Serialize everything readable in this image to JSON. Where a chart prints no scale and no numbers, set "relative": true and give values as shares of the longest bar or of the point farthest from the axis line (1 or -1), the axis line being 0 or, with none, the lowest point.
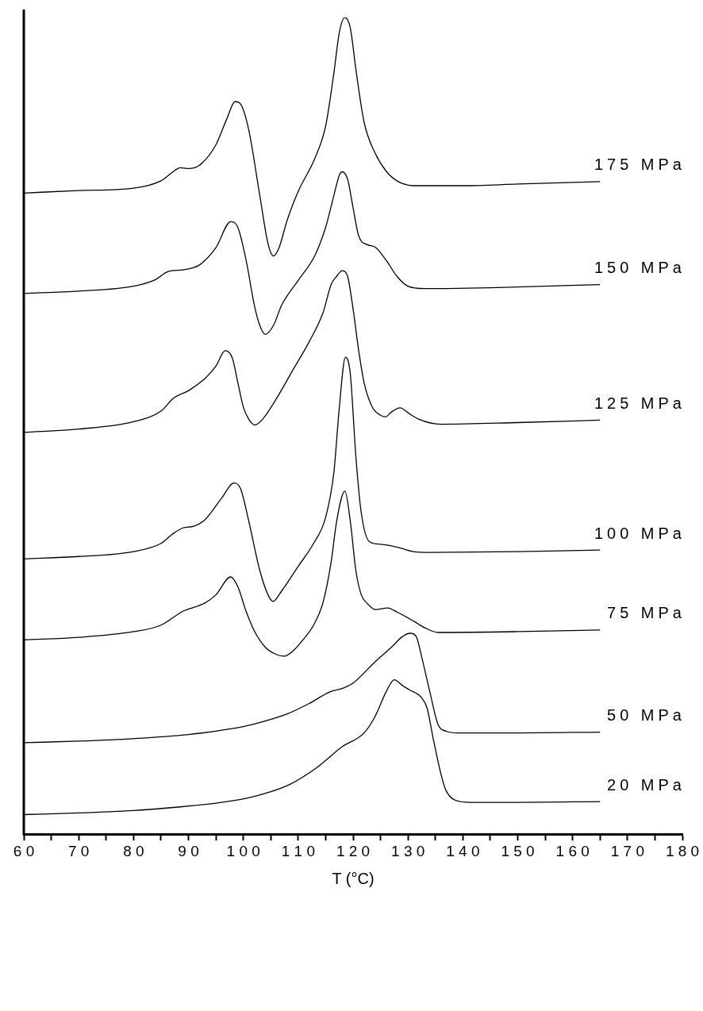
{
  "chart_data": {
    "type": "line",
    "relative": true,
    "xlabel": "T (°C)",
    "xlim": [
      60,
      180
    ],
    "xticks": [
      60,
      {
        "value": 65,
        "label": null
      },
      70,
      {
        "value": 75,
        "label": null
      },
      80,
      {
        "value": 85,
        "label": null
      },
      90,
      {
        "value": 95,
        "label": null
      },
      100,
      {
        "value": 105,
        "label": null
      },
      110,
      {
        "value": 115,
        "label": null
      },
      120,
      {
        "value": 125,
        "label": null
      },
      130,
      {
        "value": 135,
        "label": null
      },
      140,
      {
        "value": 145,
        "label": null
      },
      150,
      {
        "value": 155,
        "label": null
      },
      160,
      {
        "value": 165,
        "label": null
      },
      170,
      {
        "value": 175,
        "label": null
      },
      180
    ],
    "series": [
      {
        "name": "175 MPa",
        "color": "#000000",
        "x": [
          60,
          70,
          80,
          85,
          87,
          88.5,
          90,
          92,
          95,
          97,
          98.5,
          99.5,
          101,
          103,
          104.5,
          105.5,
          106.5,
          108,
          110,
          113,
          115,
          116.5,
          117.5,
          118.5,
          119.5,
          120.5,
          122,
          124,
          126,
          128,
          131,
          140,
          150,
          165
        ],
        "values": [
          0.785,
          0.788,
          0.791,
          0.8,
          0.81,
          0.816,
          0.815,
          0.819,
          0.844,
          0.876,
          0.897,
          0.894,
          0.862,
          0.782,
          0.723,
          0.708,
          0.718,
          0.752,
          0.787,
          0.827,
          0.867,
          0.932,
          0.982,
          1.0,
          0.987,
          0.937,
          0.872,
          0.834,
          0.812,
          0.8,
          0.794,
          0.794,
          0.796,
          0.799
        ]
      },
      {
        "name": "150 MPa",
        "color": "#000000",
        "x": [
          60,
          70,
          80,
          84,
          86.3,
          89,
          92,
          95,
          97.7,
          99,
          100.5,
          102,
          103,
          104,
          105.5,
          107,
          110,
          113,
          115,
          116.5,
          117.5,
          118,
          119,
          120,
          121,
          122.5,
          124,
          126,
          128,
          130,
          133,
          150,
          165
        ],
        "values": [
          0.662,
          0.665,
          0.671,
          0.679,
          0.689,
          0.691,
          0.697,
          0.718,
          0.75,
          0.743,
          0.703,
          0.648,
          0.623,
          0.612,
          0.623,
          0.648,
          0.678,
          0.708,
          0.743,
          0.782,
          0.807,
          0.811,
          0.802,
          0.767,
          0.733,
          0.722,
          0.719,
          0.703,
          0.683,
          0.671,
          0.668,
          0.67,
          0.673
        ]
      },
      {
        "name": "125 MPa",
        "color": "#000000",
        "x": [
          60,
          70,
          80,
          85,
          87.3,
          90,
          93,
          95,
          96.7,
          98,
          99,
          100,
          101,
          102.1,
          103.5,
          106,
          109,
          112,
          114.5,
          116,
          117,
          118,
          119,
          120,
          121,
          122,
          123.5,
          125,
          125.9,
          127,
          128.6,
          130,
          132,
          136,
          150,
          165
        ],
        "values": [
          0.492,
          0.496,
          0.505,
          0.518,
          0.534,
          0.543,
          0.558,
          0.573,
          0.592,
          0.583,
          0.553,
          0.523,
          0.508,
          0.501,
          0.508,
          0.533,
          0.568,
          0.603,
          0.638,
          0.673,
          0.683,
          0.69,
          0.683,
          0.643,
          0.593,
          0.553,
          0.523,
          0.513,
          0.511,
          0.517,
          0.522,
          0.516,
          0.508,
          0.502,
          0.504,
          0.507
        ]
      },
      {
        "name": "100 MPa",
        "color": "#000000",
        "x": [
          60,
          70,
          80,
          85,
          87,
          89,
          91,
          93,
          96,
          98.3,
          99.5,
          101,
          103,
          104.5,
          105.4,
          107,
          110,
          112.8,
          115,
          116.5,
          117.5,
          118.6,
          119.5,
          120.5,
          121.5,
          123,
          125,
          127,
          128.8,
          131,
          134,
          150,
          165
        ],
        "values": [
          0.337,
          0.34,
          0.346,
          0.356,
          0.367,
          0.375,
          0.377,
          0.385,
          0.411,
          0.43,
          0.423,
          0.383,
          0.323,
          0.293,
          0.285,
          0.298,
          0.328,
          0.356,
          0.388,
          0.443,
          0.523,
          0.584,
          0.563,
          0.463,
          0.393,
          0.358,
          0.355,
          0.353,
          0.35,
          0.346,
          0.345,
          0.346,
          0.348
        ]
      },
      {
        "name": "75 MPa",
        "color": "#000000",
        "x": [
          60,
          70,
          80,
          85,
          89,
          93,
          95,
          97.7,
          99,
          100.5,
          102,
          104,
          106,
          107.4,
          109,
          111,
          112.8,
          114.5,
          116,
          117,
          118.5,
          119.5,
          120.5,
          121.5,
          122.5,
          124.1,
          126.3,
          128,
          131,
          133,
          135.5,
          150,
          165
        ],
        "values": [
          0.238,
          0.241,
          0.248,
          0.256,
          0.273,
          0.283,
          0.293,
          0.315,
          0.303,
          0.273,
          0.249,
          0.229,
          0.22,
          0.218,
          0.224,
          0.239,
          0.256,
          0.283,
          0.333,
          0.383,
          0.42,
          0.383,
          0.323,
          0.293,
          0.283,
          0.275,
          0.277,
          0.272,
          0.261,
          0.253,
          0.247,
          0.248,
          0.25
        ]
      },
      {
        "name": "50 MPa",
        "color": "#000000",
        "x": [
          60,
          70,
          80,
          90,
          97.7,
          102,
          107.9,
          112,
          115.7,
          118.3,
          120,
          124,
          127,
          129,
          130.4,
          131.5,
          132.5,
          134,
          135.5,
          137,
          139,
          150,
          165
        ],
        "values": [
          0.112,
          0.114,
          0.117,
          0.122,
          0.129,
          0.135,
          0.147,
          0.16,
          0.174,
          0.179,
          0.185,
          0.211,
          0.229,
          0.242,
          0.246,
          0.242,
          0.217,
          0.174,
          0.134,
          0.126,
          0.124,
          0.124,
          0.125
        ]
      },
      {
        "name": "20 MPa",
        "color": "#000000",
        "x": [
          60,
          70,
          80,
          86,
          95,
          100.6,
          105,
          108.5,
          113.3,
          118,
          122,
          124,
          126,
          127.5,
          129,
          130.2,
          132.5,
          133.5,
          134.6,
          136,
          136.9,
          138.5,
          141.3,
          150,
          165
        ],
        "values": [
          0.024,
          0.026,
          0.029,
          0.032,
          0.038,
          0.044,
          0.052,
          0.061,
          0.081,
          0.107,
          0.124,
          0.144,
          0.174,
          0.189,
          0.182,
          0.177,
          0.167,
          0.154,
          0.117,
          0.074,
          0.054,
          0.042,
          0.039,
          0.039,
          0.04
        ]
      }
    ]
  }
}
